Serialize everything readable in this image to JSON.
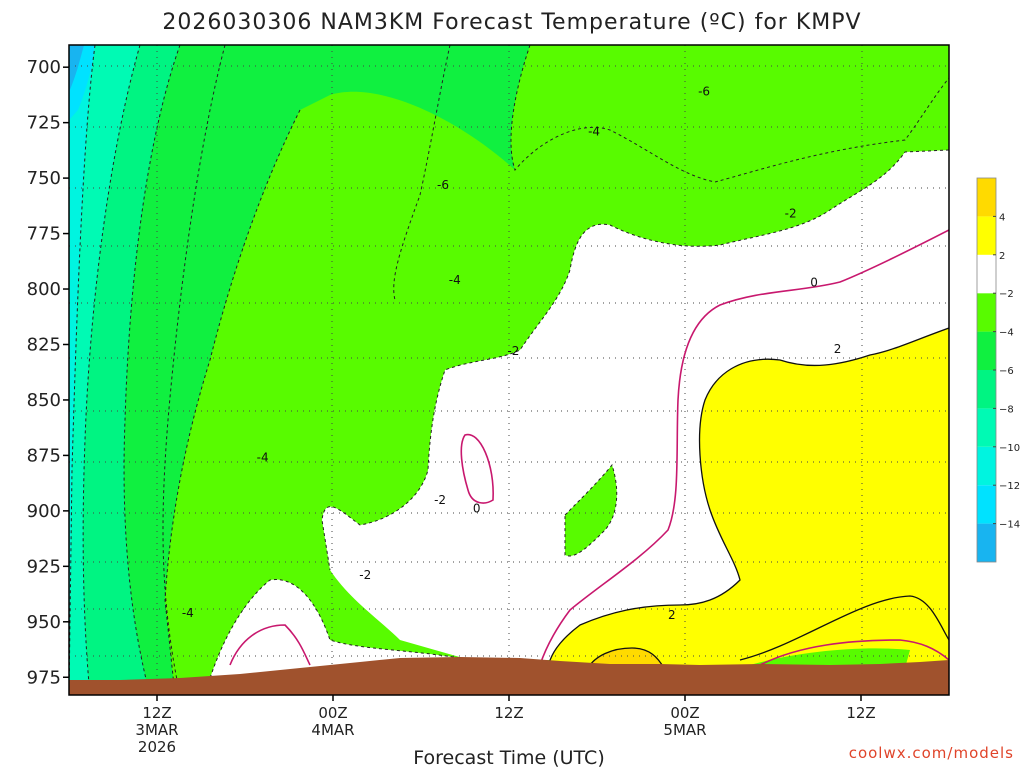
{
  "chart_data": {
    "type": "heatmap",
    "title": "2026030306 NAM3KM Forecast Temperature (ºC) for KMPV",
    "xlabel": "Forecast Time (UTC)",
    "ylabel": "",
    "credit": "coolwx.com/models",
    "y_ticks": [
      700,
      725,
      750,
      775,
      800,
      825,
      850,
      875,
      900,
      925,
      950,
      975
    ],
    "y_range": [
      690,
      983
    ],
    "x_range_hours": [
      6,
      66
    ],
    "x_ticks": [
      {
        "hour": 12,
        "lines": [
          "12Z",
          "3MAR",
          "2026"
        ]
      },
      {
        "hour": 24,
        "lines": [
          "00Z",
          "4MAR"
        ]
      },
      {
        "hour": 36,
        "lines": [
          "12Z"
        ]
      },
      {
        "hour": 48,
        "lines": [
          "00Z",
          "5MAR"
        ]
      },
      {
        "hour": 60,
        "lines": [
          "12Z"
        ]
      }
    ],
    "colorbar": {
      "levels": [
        -16,
        -14,
        -12,
        -10,
        -8,
        -6,
        -4,
        -2,
        2,
        4,
        6
      ],
      "labels": [
        "-14",
        "-12",
        "-10",
        "-8",
        "-6",
        "-4",
        "-2",
        "2",
        "4"
      ],
      "colors": [
        "#18b4f0",
        "#00e2ff",
        "#00f4e0",
        "#00fab4",
        "#00f482",
        "#10f040",
        "#58fb00",
        "#ffffff",
        "#ffff00",
        "#ffda00"
      ]
    },
    "contour_labels": [
      {
        "text": "-6",
        "hour": 49.3,
        "p": 711
      },
      {
        "text": "-4",
        "hour": 41.8,
        "p": 729
      },
      {
        "text": "-6",
        "hour": 31.5,
        "p": 753
      },
      {
        "text": "-2",
        "hour": 55.2,
        "p": 766
      },
      {
        "text": "-4",
        "hour": 32.3,
        "p": 796
      },
      {
        "text": "0",
        "hour": 56.8,
        "p": 797
      },
      {
        "text": "-2",
        "hour": 36.3,
        "p": 828
      },
      {
        "text": "2",
        "hour": 58.4,
        "p": 827
      },
      {
        "text": "-4",
        "hour": 19.2,
        "p": 876
      },
      {
        "text": "-2",
        "hour": 31.3,
        "p": 895
      },
      {
        "text": "0",
        "hour": 33.8,
        "p": 899
      },
      {
        "text": "-2",
        "hour": 26.2,
        "p": 929
      },
      {
        "text": "-4",
        "hour": 14.1,
        "p": 946
      },
      {
        "text": "2",
        "hour": 47.1,
        "p": 947
      }
    ],
    "regions": [
      {
        "label": "-14 to -12 cold core",
        "temp_range": [
          -16,
          -12
        ],
        "hours": [
          6.5,
          8.5
        ],
        "p_range": [
          690,
          725
        ]
      },
      {
        "label": "above 2",
        "temp_range": [
          2,
          4
        ],
        "hours": [
          47,
          65
        ],
        "p_range": [
          820,
          975
        ]
      },
      {
        "label": "above 4",
        "temp_range": [
          4,
          6
        ],
        "hours": [
          42,
          46.5
        ],
        "p_range": [
          968,
          977
        ]
      }
    ]
  }
}
